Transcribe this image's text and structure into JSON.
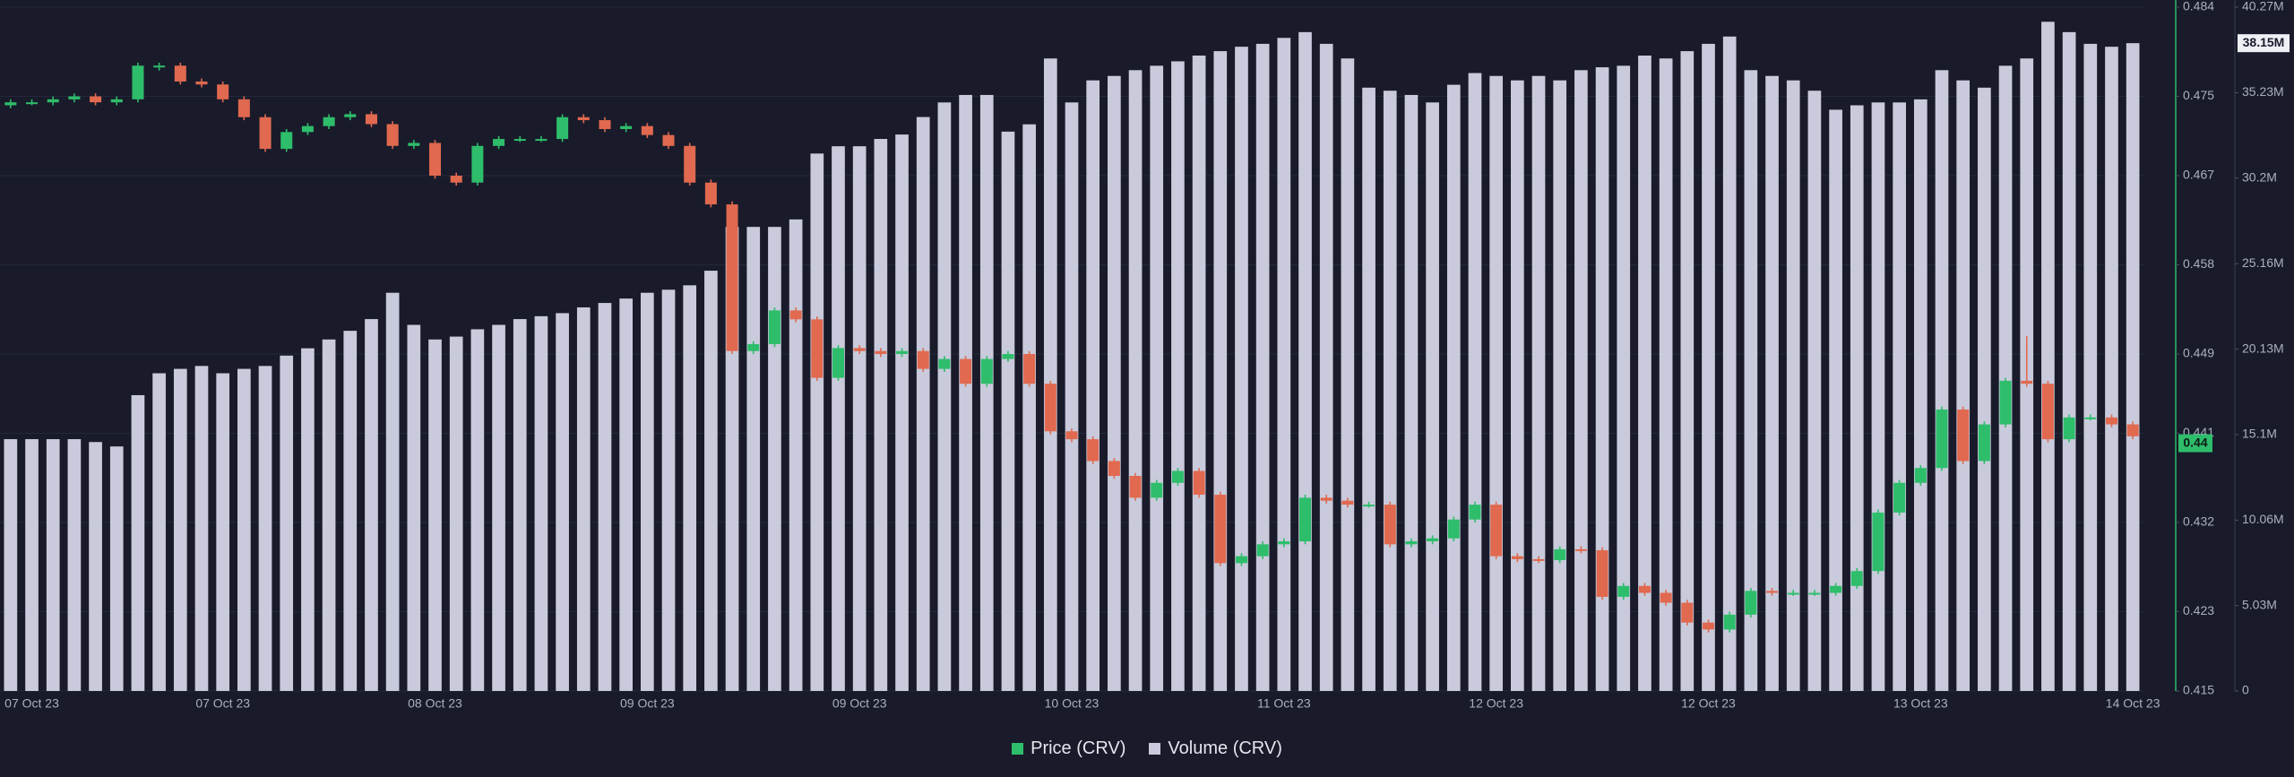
{
  "chart_data": {
    "type": "candlestick",
    "categories": [
      null,
      "07 Oct 23",
      null,
      null,
      null,
      null,
      null,
      null,
      null,
      null,
      "07 Oct 23",
      null,
      null,
      null,
      null,
      null,
      null,
      null,
      null,
      null,
      "08 Oct 23",
      null,
      null,
      null,
      null,
      null,
      null,
      null,
      null,
      null,
      "09 Oct 23",
      null,
      null,
      null,
      null,
      null,
      null,
      null,
      null,
      null,
      "09 Oct 23",
      null,
      null,
      null,
      null,
      null,
      null,
      null,
      null,
      null,
      "10 Oct 23",
      null,
      null,
      null,
      null,
      null,
      null,
      null,
      null,
      null,
      "11 Oct 23",
      null,
      null,
      null,
      null,
      null,
      null,
      null,
      null,
      null,
      "12 Oct 23",
      null,
      null,
      null,
      null,
      null,
      null,
      null,
      null,
      null,
      "12 Oct 23",
      null,
      null,
      null,
      null,
      null,
      null,
      null,
      null,
      null,
      "13 Oct 23",
      null,
      null,
      null,
      null,
      null,
      null,
      null,
      null,
      null,
      "14 Oct 23"
    ],
    "series": [
      {
        "name": "Price (CRV)",
        "type": "candlestick",
        "axis": "y2",
        "color": "#2ebd6b",
        "up_color": "#2ebd6b",
        "down_color": "#e0694f",
        "open": [
          0.4741,
          0.4744,
          0.4744,
          0.4747,
          0.475,
          0.4744,
          0.4747,
          0.4781,
          0.4781,
          0.4765,
          0.4762,
          0.4747,
          0.4729,
          0.4697,
          0.4714,
          0.472,
          0.4729,
          0.4732,
          0.4722,
          0.47,
          0.4703,
          0.467,
          0.4663,
          0.47,
          0.4707,
          0.4707,
          0.4707,
          0.4729,
          0.4726,
          0.4717,
          0.472,
          0.4711,
          0.47,
          0.4663,
          0.4641,
          0.4493,
          0.45,
          0.4534,
          0.4525,
          0.4466,
          0.4496,
          0.4493,
          0.449,
          0.4493,
          0.4475,
          0.4485,
          0.446,
          0.4485,
          0.449,
          0.446,
          0.4412,
          0.4404,
          0.4382,
          0.4367,
          0.4345,
          0.436,
          0.4372,
          0.4348,
          0.4279,
          0.4286,
          0.4298,
          0.4301,
          0.4345,
          0.4342,
          0.4338,
          0.4338,
          0.4298,
          0.4301,
          0.4304,
          0.4323,
          0.4338,
          0.4286,
          0.4283,
          0.4282,
          0.4293,
          0.4292,
          0.4245,
          0.4256,
          0.4249,
          0.4239,
          0.4219,
          0.4212,
          0.4227,
          0.4251,
          0.4249,
          0.4249,
          0.4249,
          0.4256,
          0.4271,
          0.433,
          0.436,
          0.4375,
          0.4434,
          0.4382,
          0.4419,
          0.4463,
          0.446,
          0.4404,
          0.4426,
          0.4426,
          0.4419
        ],
        "high": [
          0.4747,
          0.4747,
          0.475,
          0.4753,
          0.4753,
          0.475,
          0.4784,
          0.4784,
          0.4784,
          0.4768,
          0.4765,
          0.475,
          0.4732,
          0.4717,
          0.4723,
          0.4732,
          0.4735,
          0.4735,
          0.4725,
          0.4706,
          0.4706,
          0.4673,
          0.4703,
          0.471,
          0.471,
          0.471,
          0.4732,
          0.4732,
          0.4729,
          0.4723,
          0.4723,
          0.4714,
          0.4703,
          0.4666,
          0.4644,
          0.4503,
          0.4537,
          0.4537,
          0.4528,
          0.4499,
          0.4499,
          0.4496,
          0.4496,
          0.4496,
          0.4488,
          0.4488,
          0.4488,
          0.4493,
          0.4493,
          0.4463,
          0.4415,
          0.4407,
          0.4385,
          0.437,
          0.4363,
          0.4375,
          0.4375,
          0.4351,
          0.4289,
          0.4301,
          0.4304,
          0.4348,
          0.4348,
          0.4345,
          0.4341,
          0.4341,
          0.4304,
          0.4307,
          0.4326,
          0.4341,
          0.4341,
          0.4289,
          0.4286,
          0.4296,
          0.4296,
          0.4295,
          0.4259,
          0.4259,
          0.4252,
          0.4242,
          0.4222,
          0.423,
          0.4254,
          0.4254,
          0.4252,
          0.4252,
          0.4259,
          0.4274,
          0.4333,
          0.4363,
          0.4378,
          0.4437,
          0.4437,
          0.4422,
          0.4466,
          0.4508,
          0.4463,
          0.4429,
          0.4429,
          0.4429,
          0.4422
        ],
        "low": [
          0.4738,
          0.4741,
          0.4741,
          0.4744,
          0.4741,
          0.4741,
          0.4744,
          0.4776,
          0.4762,
          0.4759,
          0.4744,
          0.4726,
          0.4694,
          0.4694,
          0.4711,
          0.4717,
          0.4726,
          0.4719,
          0.4697,
          0.4697,
          0.4667,
          0.466,
          0.466,
          0.4697,
          0.4704,
          0.4704,
          0.4704,
          0.4723,
          0.4714,
          0.4714,
          0.4708,
          0.4697,
          0.466,
          0.4638,
          0.449,
          0.449,
          0.4497,
          0.4522,
          0.4463,
          0.4463,
          0.449,
          0.4487,
          0.4487,
          0.4472,
          0.4472,
          0.4457,
          0.4457,
          0.4482,
          0.4457,
          0.4409,
          0.4401,
          0.4379,
          0.4364,
          0.4342,
          0.4342,
          0.4357,
          0.4345,
          0.4276,
          0.4276,
          0.4283,
          0.4295,
          0.4298,
          0.4339,
          0.4335,
          0.4335,
          0.4295,
          0.4295,
          0.4298,
          0.4301,
          0.432,
          0.4283,
          0.428,
          0.4279,
          0.4279,
          0.4289,
          0.4242,
          0.4242,
          0.4246,
          0.4236,
          0.4216,
          0.4209,
          0.4209,
          0.4224,
          0.4246,
          0.4246,
          0.4246,
          0.4246,
          0.4253,
          0.4268,
          0.4327,
          0.4357,
          0.4372,
          0.4379,
          0.4379,
          0.4416,
          0.4457,
          0.4401,
          0.4401,
          0.4423,
          0.4416,
          0.4404
        ],
        "close": [
          0.4744,
          0.4744,
          0.4747,
          0.475,
          0.4744,
          0.4747,
          0.4781,
          0.4781,
          0.4765,
          0.4762,
          0.4747,
          0.4729,
          0.4697,
          0.4714,
          0.472,
          0.4729,
          0.4732,
          0.4722,
          0.47,
          0.4703,
          0.467,
          0.4663,
          0.47,
          0.4707,
          0.4707,
          0.4707,
          0.4729,
          0.4726,
          0.4717,
          0.472,
          0.4711,
          0.47,
          0.4663,
          0.4641,
          0.4493,
          0.45,
          0.4534,
          0.4525,
          0.4466,
          0.4496,
          0.4493,
          0.449,
          0.4493,
          0.4475,
          0.4485,
          0.446,
          0.4485,
          0.449,
          0.446,
          0.4412,
          0.4404,
          0.4382,
          0.4367,
          0.4345,
          0.436,
          0.4372,
          0.4348,
          0.4279,
          0.4286,
          0.4298,
          0.4301,
          0.4345,
          0.4342,
          0.4338,
          0.4338,
          0.4298,
          0.4301,
          0.4304,
          0.4323,
          0.4338,
          0.4286,
          0.4283,
          0.4282,
          0.4293,
          0.4292,
          0.4245,
          0.4256,
          0.4249,
          0.4239,
          0.4219,
          0.4212,
          0.4227,
          0.4251,
          0.4249,
          0.4249,
          0.4249,
          0.4256,
          0.4271,
          0.433,
          0.436,
          0.4375,
          0.4434,
          0.4382,
          0.4419,
          0.4463,
          0.446,
          0.4404,
          0.4426,
          0.4426,
          0.4419,
          0.4407
        ]
      },
      {
        "name": "Volume (CRV)",
        "type": "bar",
        "color": "#c9cbdc",
        "values": [
          14830000,
          14830000,
          14830000,
          14830000,
          14660000,
          14400000,
          17420000,
          18710000,
          18970000,
          19140000,
          18710000,
          18970000,
          19140000,
          19750000,
          20180000,
          20700000,
          21210000,
          21900000,
          23450000,
          21560000,
          20700000,
          20870000,
          21300000,
          21560000,
          21900000,
          22070000,
          22250000,
          22590000,
          22850000,
          23110000,
          23450000,
          23630000,
          23890000,
          24750000,
          27330000,
          27330000,
          27330000,
          27770000,
          31650000,
          32080000,
          32080000,
          32510000,
          32770000,
          33800000,
          34660000,
          35100000,
          35100000,
          32940000,
          33370000,
          37250000,
          34660000,
          35960000,
          36220000,
          36560000,
          36820000,
          37080000,
          37420000,
          37680000,
          37940000,
          38110000,
          38460000,
          38800000,
          38110000,
          37250000,
          35530000,
          35350000,
          35100000,
          34660000,
          35700000,
          36390000,
          36220000,
          35960000,
          36220000,
          35960000,
          36560000,
          36730000,
          36820000,
          37420000,
          37250000,
          37680000,
          38110000,
          38540000,
          36560000,
          36220000,
          35960000,
          35350000,
          34230000,
          34490000,
          34660000,
          34660000,
          34840000,
          36560000,
          35960000,
          35530000,
          36820000,
          37250000,
          39410000,
          38800000,
          38110000,
          37940000,
          38150000
        ]
      }
    ],
    "ylim": [
      0,
      40270000
    ],
    "yticks": [
      0,
      {
        "value": 5030000,
        "label": "5.03M"
      },
      {
        "value": 10060000,
        "label": "10.06M"
      },
      {
        "value": 15100000,
        "label": "15.1M"
      },
      {
        "value": 20130000,
        "label": "20.13M"
      },
      {
        "value": 25160000,
        "label": "25.16M"
      },
      {
        "value": 30200000,
        "label": "30.2M"
      },
      {
        "value": 35230000,
        "label": "35.23M"
      },
      {
        "value": 40270000,
        "label": "40.27M"
      }
    ],
    "y2lim": [
      0.415,
      0.484
    ],
    "y2ticks": [
      0.415,
      0.423,
      0.432,
      0.441,
      0.449,
      0.458,
      0.467,
      0.475,
      0.484
    ],
    "price_badge": 0.44,
    "volume_badge": {
      "value": 38150000,
      "label": "38.15M"
    },
    "grid": true
  }
}
